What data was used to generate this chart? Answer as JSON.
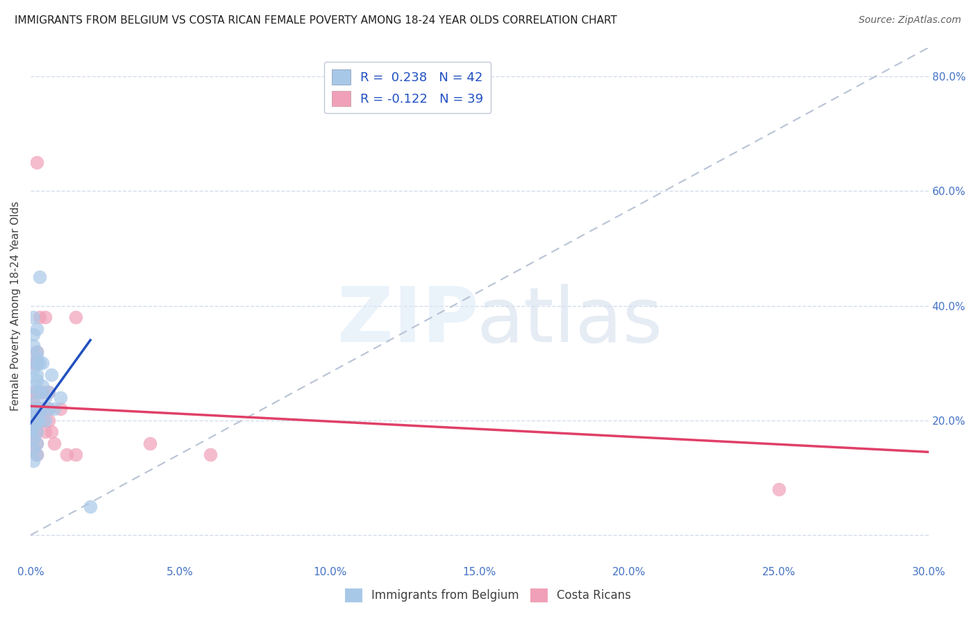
{
  "title": "IMMIGRANTS FROM BELGIUM VS COSTA RICAN FEMALE POVERTY AMONG 18-24 YEAR OLDS CORRELATION CHART",
  "source": "Source: ZipAtlas.com",
  "ylabel": "Female Poverty Among 18-24 Year Olds",
  "x_min": 0.0,
  "x_max": 0.3,
  "y_min": -0.05,
  "y_max": 0.85,
  "legend_blue_label": "R =  0.238   N = 42",
  "legend_pink_label": "R = -0.122   N = 39",
  "blue_color": "#a8c8e8",
  "pink_color": "#f0a0b8",
  "blue_line_color": "#2050c0",
  "pink_line_color": "#e04068",
  "diag_line_color": "#b0bcd0",
  "blue_scatter_x": [
    0.0,
    0.0,
    0.001,
    0.001,
    0.001,
    0.001,
    0.001,
    0.001,
    0.001,
    0.001,
    0.001,
    0.001,
    0.001,
    0.001,
    0.002,
    0.002,
    0.002,
    0.002,
    0.002,
    0.002,
    0.002,
    0.002,
    0.002,
    0.002,
    0.002,
    0.002,
    0.003,
    0.003,
    0.003,
    0.003,
    0.003,
    0.004,
    0.004,
    0.004,
    0.005,
    0.005,
    0.006,
    0.006,
    0.007,
    0.008,
    0.01,
    0.02
  ],
  "blue_scatter_y": [
    0.2,
    0.18,
    0.22,
    0.19,
    0.21,
    0.17,
    0.23,
    0.26,
    0.29,
    0.33,
    0.35,
    0.38,
    0.15,
    0.13,
    0.2,
    0.18,
    0.22,
    0.25,
    0.28,
    0.3,
    0.16,
    0.14,
    0.31,
    0.27,
    0.32,
    0.36,
    0.2,
    0.22,
    0.25,
    0.3,
    0.45,
    0.22,
    0.26,
    0.3,
    0.2,
    0.24,
    0.22,
    0.25,
    0.28,
    0.22,
    0.24,
    0.05
  ],
  "pink_scatter_x": [
    0.0,
    0.0,
    0.001,
    0.001,
    0.001,
    0.001,
    0.001,
    0.001,
    0.001,
    0.001,
    0.002,
    0.002,
    0.002,
    0.002,
    0.002,
    0.002,
    0.002,
    0.003,
    0.003,
    0.003,
    0.003,
    0.004,
    0.004,
    0.004,
    0.005,
    0.005,
    0.006,
    0.006,
    0.006,
    0.007,
    0.008,
    0.01,
    0.012,
    0.015,
    0.015,
    0.04,
    0.06,
    0.25,
    0.002
  ],
  "pink_scatter_y": [
    0.2,
    0.18,
    0.22,
    0.19,
    0.21,
    0.17,
    0.23,
    0.3,
    0.15,
    0.25,
    0.18,
    0.22,
    0.25,
    0.16,
    0.3,
    0.14,
    0.32,
    0.2,
    0.22,
    0.25,
    0.38,
    0.2,
    0.22,
    0.25,
    0.18,
    0.38,
    0.2,
    0.22,
    0.25,
    0.18,
    0.16,
    0.22,
    0.14,
    0.38,
    0.14,
    0.16,
    0.14,
    0.08,
    0.65
  ],
  "blue_line_x0": 0.0,
  "blue_line_x1": 0.02,
  "blue_line_y0": 0.195,
  "blue_line_y1": 0.34,
  "pink_line_x0": 0.0,
  "pink_line_x1": 0.3,
  "pink_line_y0": 0.225,
  "pink_line_y1": 0.145
}
